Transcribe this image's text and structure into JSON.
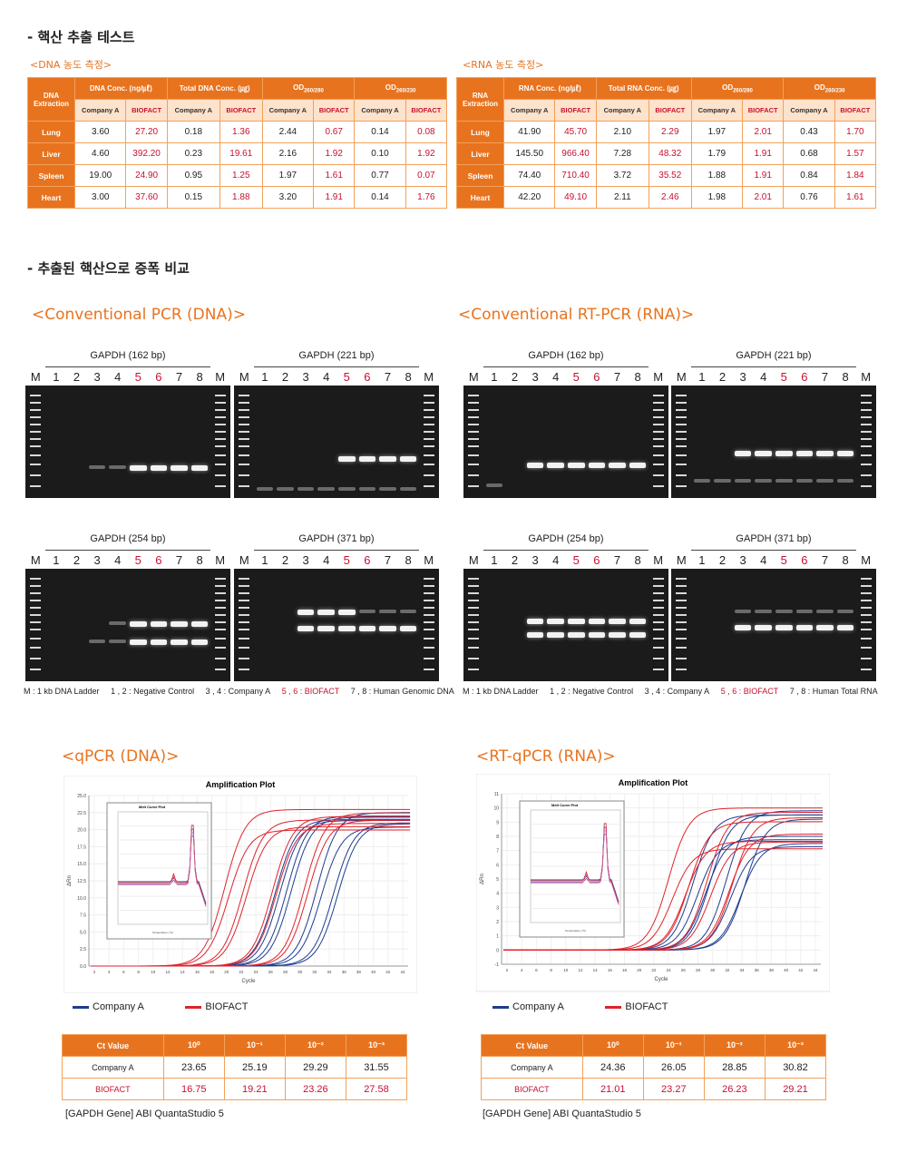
{
  "headings": {
    "section1": "- 핵산 추출 테스트",
    "dna_sub": "<DNA 농도 측정>",
    "rna_sub": "<RNA 농도 측정>",
    "section2": "- 추출된 핵산으로 증폭 비교",
    "pcr_dna": "<Conventional PCR (DNA)>",
    "pcr_rna": "<Conventional RT-PCR (RNA)>",
    "qpcr_dna": "<qPCR (DNA)>",
    "qpcr_rna": "<RT-qPCR (RNA)>"
  },
  "dna_table": {
    "corner": "DNA Extraction",
    "groups": [
      "DNA Conc. (ng/㎕)",
      "Total DNA Conc. (㎍)",
      "OD260/280",
      "OD260/230"
    ],
    "sub": [
      "Company A",
      "BIOFACT"
    ],
    "rows": [
      {
        "label": "Lung",
        "v": [
          "3.60",
          "27.20",
          "0.18",
          "1.36",
          "2.44",
          "0.67",
          "0.14",
          "0.08"
        ]
      },
      {
        "label": "Liver",
        "v": [
          "4.60",
          "392.20",
          "0.23",
          "19.61",
          "2.16",
          "1.92",
          "0.10",
          "1.92"
        ]
      },
      {
        "label": "Spleen",
        "v": [
          "19.00",
          "24.90",
          "0.95",
          "1.25",
          "1.97",
          "1.61",
          "0.77",
          "0.07"
        ]
      },
      {
        "label": "Heart",
        "v": [
          "3.00",
          "37.60",
          "0.15",
          "1.88",
          "3.20",
          "1.91",
          "0.14",
          "1.76"
        ]
      }
    ]
  },
  "rna_table": {
    "corner": "RNA Extraction",
    "groups": [
      "RNA Conc. (ng/㎕)",
      "Total RNA Conc. (㎍)",
      "OD260/280",
      "OD260/230"
    ],
    "sub": [
      "Company A",
      "BIOFACT"
    ],
    "rows": [
      {
        "label": "Lung",
        "v": [
          "41.90",
          "45.70",
          "2.10",
          "2.29",
          "1.97",
          "2.01",
          "0.43",
          "1.70"
        ]
      },
      {
        "label": "Liver",
        "v": [
          "145.50",
          "966.40",
          "7.28",
          "48.32",
          "1.79",
          "1.91",
          "0.68",
          "1.57"
        ]
      },
      {
        "label": "Spleen",
        "v": [
          "74.40",
          "710.40",
          "3.72",
          "35.52",
          "1.88",
          "1.91",
          "0.84",
          "1.84"
        ]
      },
      {
        "label": "Heart",
        "v": [
          "42.20",
          "49.10",
          "2.11",
          "2.46",
          "1.98",
          "2.01",
          "0.76",
          "1.61"
        ]
      }
    ]
  },
  "gels": {
    "titles": [
      "GAPDH (162 bp)",
      "GAPDH (221 bp)",
      "GAPDH (254 bp)",
      "GAPDH (371 bp)"
    ],
    "lanes": [
      "M",
      "1",
      "2",
      "3",
      "4",
      "5",
      "6",
      "7",
      "8",
      "M"
    ],
    "dna_legend": [
      "M : 1 kb DNA Ladder",
      "1 , 2 : Negative Control",
      "3 , 4 : Company A",
      "5 , 6 : BIOFACT",
      "7 , 8 : Human Genomic DNA"
    ],
    "rna_legend": [
      "M : 1 kb DNA Ladder",
      "1 , 2 : Negative Control",
      "3 , 4 : Company A",
      "5 , 6 : BIOFACT",
      "7 , 8 : Human Total RNA"
    ]
  },
  "plots": {
    "title": "Amplification Plot",
    "inset_title": "Melt Curve Plot",
    "xlabel": "Cycle",
    "ylabel": "ΔRn",
    "inset_xlabel": "Temperature (°C)",
    "dna_y_ticks": [
      "25.0",
      "22.5",
      "20.0",
      "17.5",
      "15.0",
      "12.5",
      "10.0",
      "7.5",
      "5.0",
      "2.5",
      "0.0"
    ],
    "rna_y_ticks": [
      "11",
      "10",
      "9",
      "8",
      "7",
      "6",
      "5",
      "4",
      "3",
      "2",
      "1",
      "0",
      "-1"
    ],
    "x_ticks": [
      "2",
      "4",
      "6",
      "8",
      "10",
      "12",
      "14",
      "16",
      "18",
      "20",
      "22",
      "24",
      "26",
      "28",
      "30",
      "32",
      "34",
      "36",
      "38",
      "40",
      "42",
      "44"
    ],
    "legend": [
      "Company A",
      "BIOFACT"
    ],
    "colors": {
      "company_a": "#1f3c8f",
      "biofact": "#e0222b"
    }
  },
  "ct_dna": {
    "header": [
      "Ct Value",
      "10⁰",
      "10⁻¹",
      "10⁻²",
      "10⁻³"
    ],
    "company_a": [
      "Company A",
      "23.65",
      "25.19",
      "29.29",
      "31.55"
    ],
    "biofact": [
      "BIOFACT",
      "16.75",
      "19.21",
      "23.26",
      "27.58"
    ]
  },
  "ct_rna": {
    "header": [
      "Ct Value",
      "10⁰",
      "10⁻¹",
      "10⁻²",
      "10⁻³"
    ],
    "company_a": [
      "Company A",
      "24.36",
      "26.05",
      "28.85",
      "30.82"
    ],
    "biofact": [
      "BIOFACT",
      "21.01",
      "23.27",
      "26.23",
      "29.21"
    ]
  },
  "footnotes": {
    "dna": "[GAPDH Gene] ABI QuantaStudio 5",
    "rna": "[GAPDH Gene] ABI QuantaStudio 5"
  }
}
